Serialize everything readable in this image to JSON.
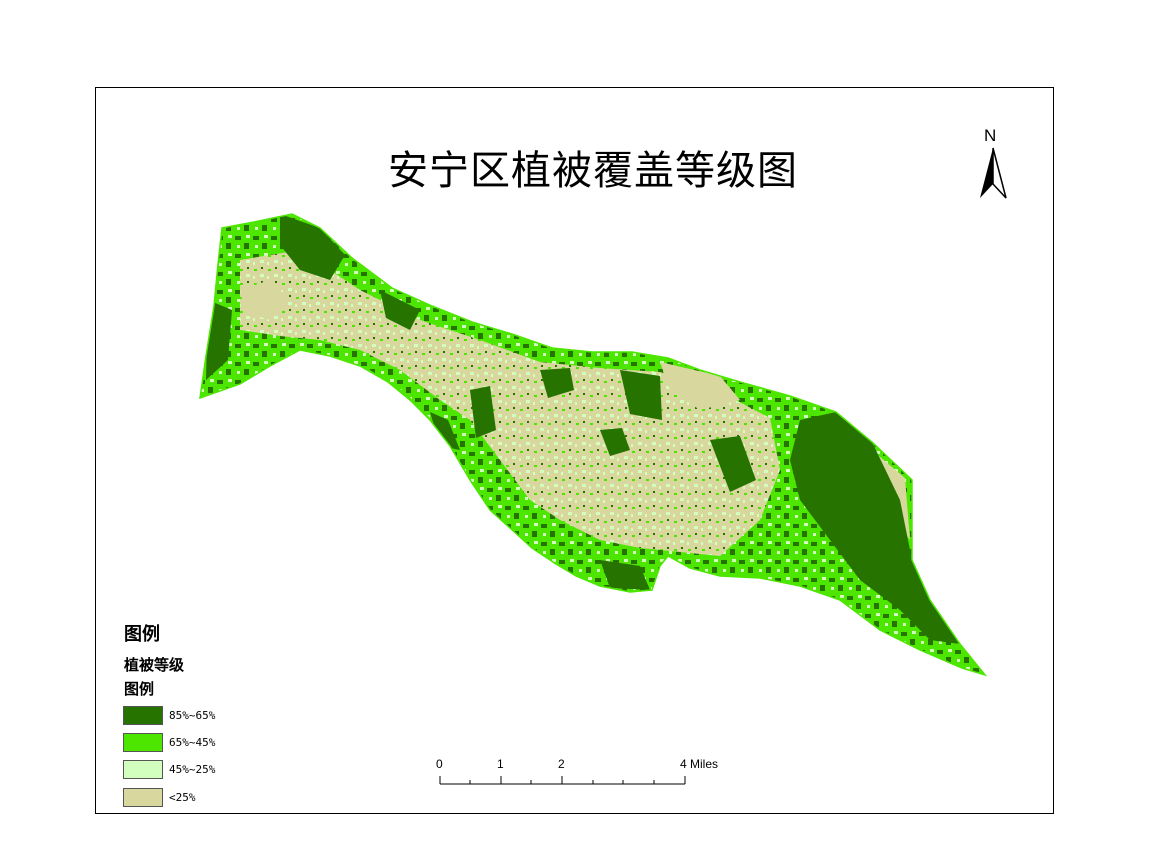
{
  "map": {
    "title": "安宁区植被覆盖等级图",
    "north_label": "N"
  },
  "legend": {
    "title": "图例",
    "layer_name": "植被等级",
    "sub_title": "图例",
    "items": [
      {
        "label": "85%~65%",
        "color": "#267300"
      },
      {
        "label": "65%~45%",
        "color": "#4ce600"
      },
      {
        "label": "45%~25%",
        "color": "#d3ffbe"
      },
      {
        "label": "<25%",
        "color": "#d7d79e"
      }
    ]
  },
  "scale_bar": {
    "labels": [
      "0",
      "1",
      "2",
      "4 Miles"
    ]
  },
  "colors": {
    "dark_green": "#267300",
    "bright_green": "#4ce600",
    "light_green": "#d3ffbe",
    "tan": "#d7d79e"
  }
}
